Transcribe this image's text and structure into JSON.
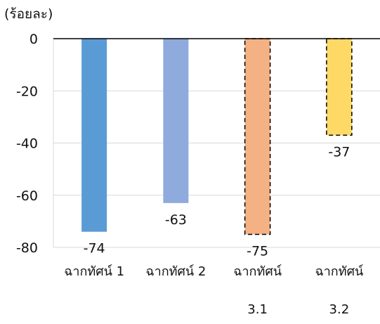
{
  "chart_data": {
    "type": "bar",
    "unit_label": "(ร้อยละ)",
    "ylim": [
      -80,
      0
    ],
    "yticks": [
      0,
      -20,
      -40,
      -60,
      -80
    ],
    "categories": [
      {
        "lines": [
          "ฉากทัศน์ 1"
        ]
      },
      {
        "lines": [
          "ฉากทัศน์ 2"
        ]
      },
      {
        "lines": [
          "ฉากทัศน์",
          "3.1"
        ]
      },
      {
        "lines": [
          "ฉากทัศน์",
          "3.2"
        ]
      }
    ],
    "values": [
      -74,
      -63,
      -75,
      -37
    ],
    "data_labels": [
      "-74",
      "-63",
      "-75",
      "-37"
    ],
    "colors": [
      "#5b9bd5",
      "#8faadc",
      "#f4b183",
      "#ffd966"
    ],
    "dashed_outline": [
      false,
      false,
      true,
      true
    ],
    "grid": true,
    "legend": "none"
  }
}
